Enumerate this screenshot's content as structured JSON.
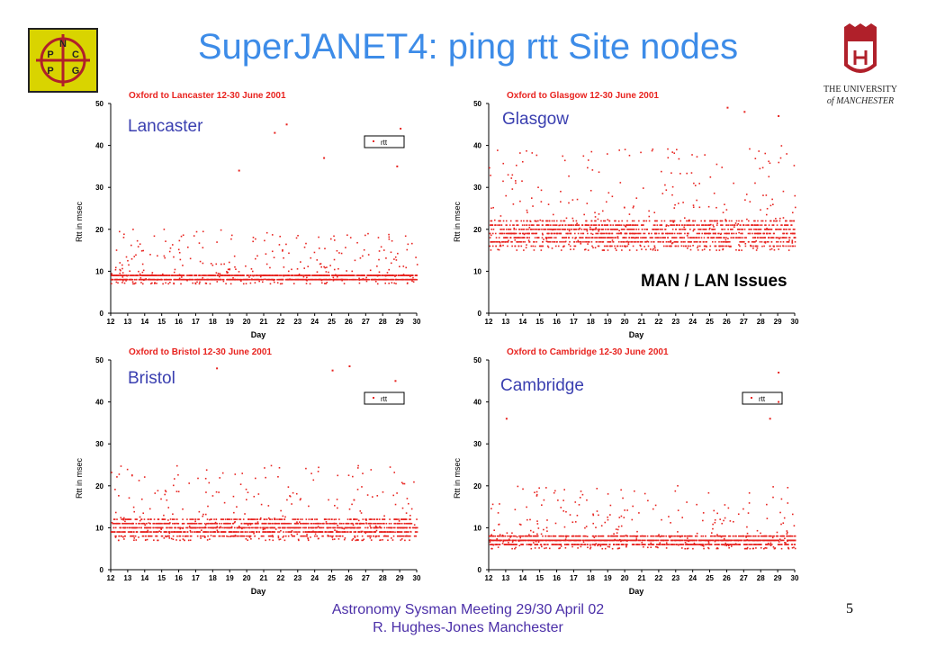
{
  "slide": {
    "title": "SuperJANET4: ping rtt Site nodes",
    "annotation": "MAN / LAN Issues",
    "footer_line1": "Astronomy Sysman Meeting  29/30 April 02",
    "footer_line2": "R. Hughes-Jones  Manchester",
    "page_number": "5",
    "left_logo": {
      "letters": [
        "N",
        "P",
        "C",
        "P",
        "G"
      ],
      "icon": "ppncg-logo-icon"
    },
    "right_logo": {
      "line1": "THE UNIVERSITY",
      "line2": "of MANCHESTER",
      "icon": "university-crest-icon"
    }
  },
  "colors": {
    "title": "#3d8ce8",
    "points": "#e8231f",
    "site_label": "#3a3fb0",
    "chart_title": "#e8231f",
    "footer": "#4b2fa8"
  },
  "chart_data": [
    {
      "type": "scatter",
      "site": "Lancaster",
      "title": "Oxford to Lancaster 12-30 June 2001",
      "xlabel": "Day",
      "ylabel": "Rtt in msec",
      "xlim": [
        12,
        30
      ],
      "ylim": [
        0,
        50
      ],
      "x_ticks": [
        12,
        13,
        14,
        15,
        16,
        17,
        18,
        19,
        20,
        21,
        22,
        23,
        24,
        25,
        26,
        27,
        28,
        29,
        30
      ],
      "y_ticks": [
        0,
        10,
        20,
        30,
        40,
        50
      ],
      "legend": {
        "entries": [
          "rtt"
        ],
        "placement": "top-right"
      },
      "series": [
        {
          "name": "rtt",
          "baseline_ms": [
            8,
            9
          ],
          "typical_range_ms": [
            7,
            20
          ],
          "outliers_ms": [
            [
              21.6,
              43
            ],
            [
              22.3,
              45
            ],
            [
              19.5,
              34
            ],
            [
              24.5,
              37
            ],
            [
              29,
              44
            ],
            [
              28.8,
              35
            ]
          ]
        }
      ]
    },
    {
      "type": "scatter",
      "site": "Glasgow",
      "title": "Oxford to Glasgow 12-30 June 2001",
      "xlabel": "Day",
      "ylabel": "Rtt in msec",
      "xlim": [
        12,
        30
      ],
      "ylim": [
        0,
        50
      ],
      "x_ticks": [
        12,
        13,
        14,
        15,
        16,
        17,
        18,
        19,
        20,
        21,
        22,
        23,
        24,
        25,
        26,
        27,
        28,
        29,
        30
      ],
      "y_ticks": [
        0,
        10,
        20,
        30,
        40,
        50
      ],
      "legend": null,
      "series": [
        {
          "name": "rtt",
          "baseline_ms": [
            16,
            22
          ],
          "typical_range_ms": [
            15,
            40
          ],
          "outliers_ms": [
            [
              26,
              49
            ],
            [
              27,
              48
            ],
            [
              29,
              47
            ]
          ]
        }
      ]
    },
    {
      "type": "scatter",
      "site": "Bristol",
      "title": "Oxford to Bristol 12-30 June 2001",
      "xlabel": "Day",
      "ylabel": "Rtt in msec",
      "xlim": [
        12,
        30
      ],
      "ylim": [
        0,
        50
      ],
      "x_ticks": [
        12,
        13,
        14,
        15,
        16,
        17,
        18,
        19,
        20,
        21,
        22,
        23,
        24,
        25,
        26,
        27,
        28,
        29,
        30
      ],
      "y_ticks": [
        0,
        10,
        20,
        30,
        40,
        50
      ],
      "legend": {
        "entries": [
          "rtt"
        ],
        "placement": "top-right"
      },
      "series": [
        {
          "name": "rtt",
          "baseline_ms": [
            8,
            12
          ],
          "typical_range_ms": [
            7,
            25
          ],
          "outliers_ms": [
            [
              18.2,
              48
            ],
            [
              25,
              47.5
            ],
            [
              26,
              48.5
            ],
            [
              28.7,
              45
            ]
          ]
        }
      ]
    },
    {
      "type": "scatter",
      "site": "Cambridge",
      "title": "Oxford to Cambridge 12-30 June 2001",
      "xlabel": "Day",
      "ylabel": "Rtt in msec",
      "xlim": [
        12,
        30
      ],
      "ylim": [
        0,
        50
      ],
      "x_ticks": [
        12,
        13,
        14,
        15,
        16,
        17,
        18,
        19,
        20,
        21,
        22,
        23,
        24,
        25,
        26,
        27,
        28,
        29,
        30
      ],
      "y_ticks": [
        0,
        10,
        20,
        30,
        40,
        50
      ],
      "legend": {
        "entries": [
          "rtt"
        ],
        "placement": "top-right"
      },
      "series": [
        {
          "name": "rtt",
          "baseline_ms": [
            6,
            8
          ],
          "typical_range_ms": [
            5,
            20
          ],
          "outliers_ms": [
            [
              29,
              47
            ],
            [
              29,
              40
            ],
            [
              28.5,
              36
            ],
            [
              13,
              36
            ]
          ]
        }
      ]
    }
  ]
}
